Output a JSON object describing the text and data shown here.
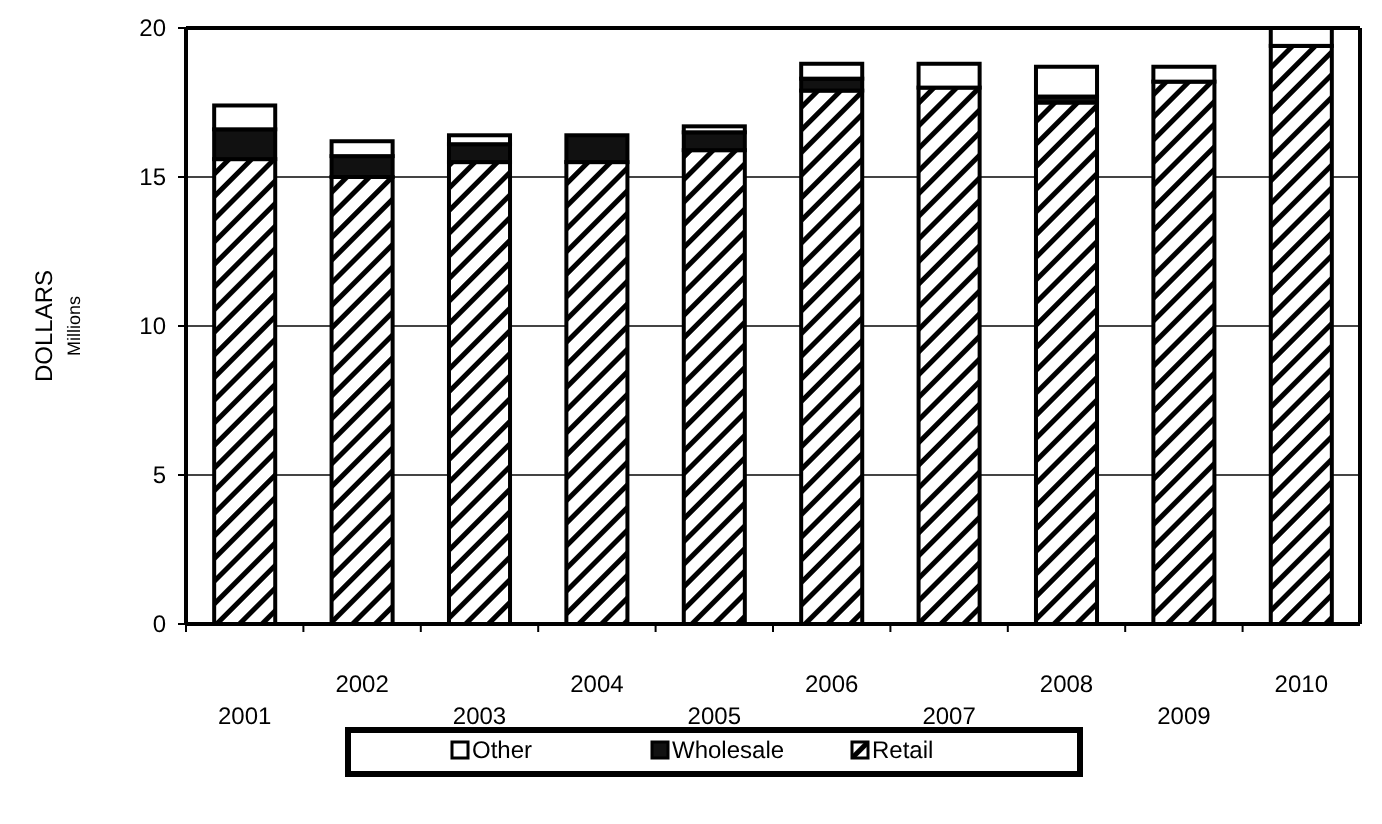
{
  "chart_data": {
    "type": "bar",
    "stacked": true,
    "ylabel": "DOLLARS",
    "annotations": [
      "Millions"
    ],
    "categories": [
      "2001",
      "2002",
      "2003",
      "2004",
      "2005",
      "2006",
      "2007",
      "2008",
      "2009",
      "2010"
    ],
    "series": [
      {
        "name": "Retail",
        "color": "#000000",
        "values": [
          15.6,
          15.0,
          15.5,
          15.5,
          15.9,
          17.9,
          18.0,
          17.5,
          18.2,
          19.4
        ]
      },
      {
        "name": "Wholesale",
        "color": "#111111",
        "values": [
          1.0,
          0.7,
          0.6,
          0.9,
          0.6,
          0.4,
          0,
          0.2,
          0,
          0
        ]
      },
      {
        "name": "Other",
        "color": "#ffffff",
        "values": [
          0.8,
          0.5,
          0.3,
          0,
          0.2,
          0.5,
          0.8,
          1.0,
          0.5,
          0.6
        ]
      }
    ],
    "ylim": [
      0,
      20
    ],
    "yticks": [
      0,
      5,
      10,
      15,
      20
    ],
    "grid": "y",
    "legend": "bottom"
  }
}
